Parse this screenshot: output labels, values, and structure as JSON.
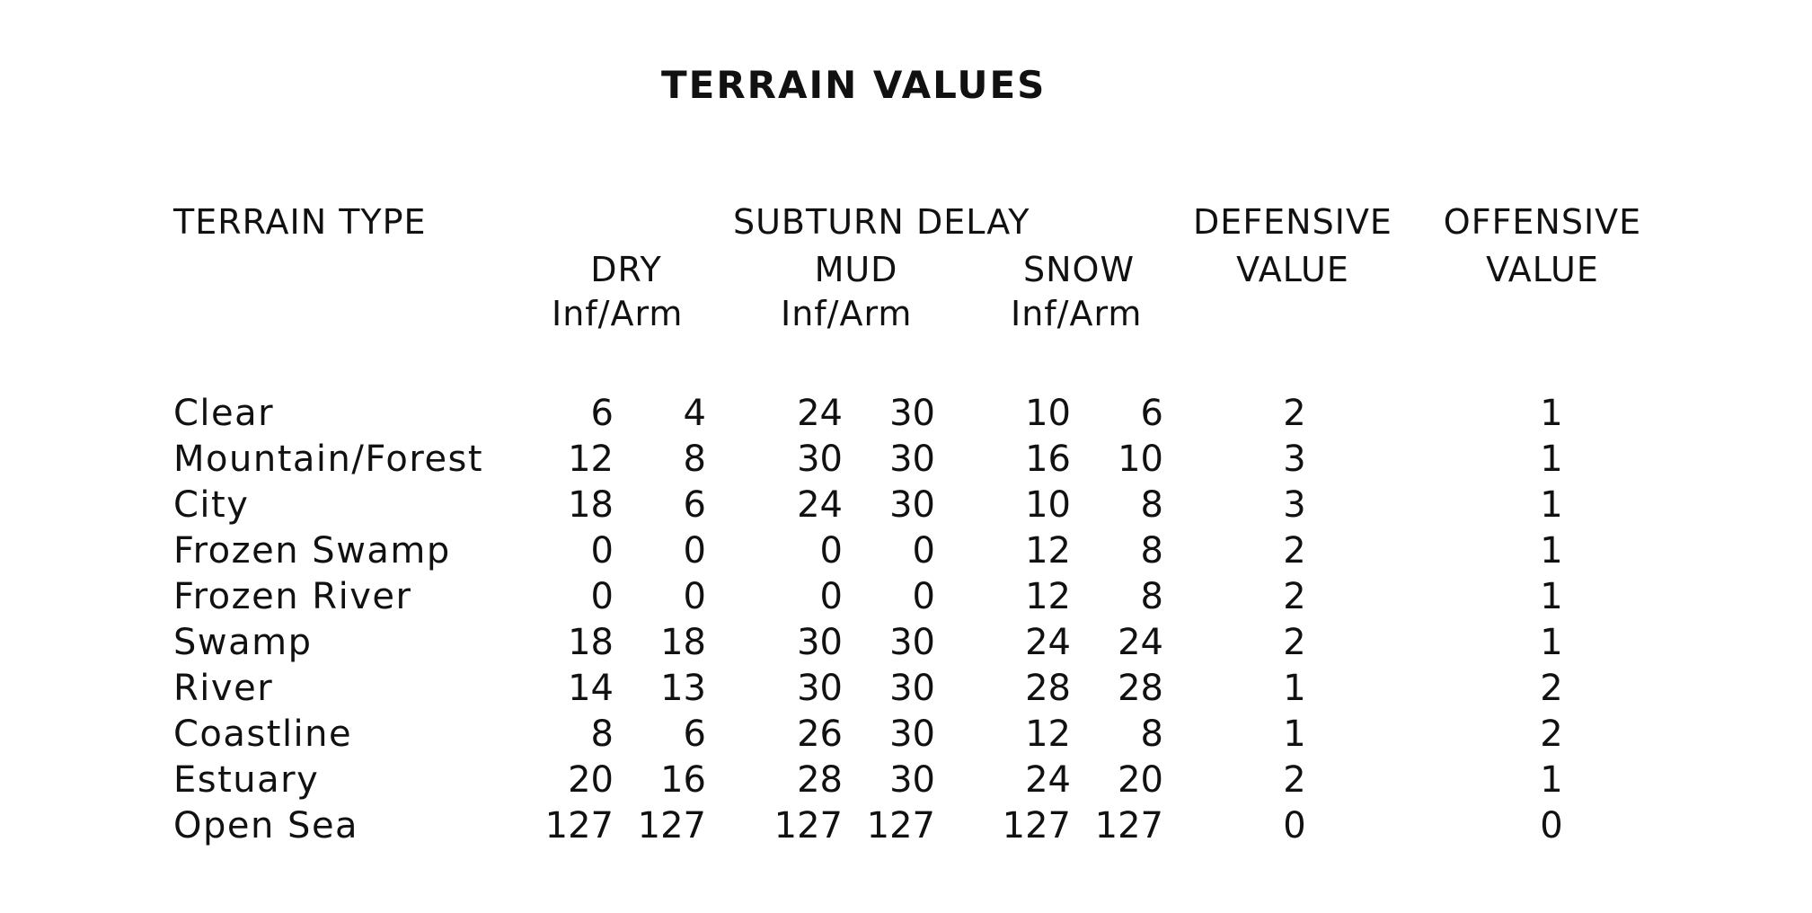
{
  "title": "TERRAIN VALUES",
  "headers": {
    "terrain_type": "TERRAIN TYPE",
    "subturn_delay": "SUBTURN DELAY",
    "dry": "DRY",
    "mud": "MUD",
    "snow": "SNOW",
    "inf_arm": "Inf/Arm",
    "defensive_line1": "DEFENSIVE",
    "defensive_line2": "VALUE",
    "offensive_line1": "OFFENSIVE",
    "offensive_line2": "VALUE"
  },
  "rows": [
    {
      "terrain": "Clear",
      "dry_inf": "6",
      "dry_arm": "4",
      "mud_inf": "24",
      "mud_arm": "30",
      "snow_inf": "10",
      "snow_arm": "6",
      "defensive": "2",
      "offensive": "1"
    },
    {
      "terrain": "Mountain/Forest",
      "dry_inf": "12",
      "dry_arm": "8",
      "mud_inf": "30",
      "mud_arm": "30",
      "snow_inf": "16",
      "snow_arm": "10",
      "defensive": "3",
      "offensive": "1"
    },
    {
      "terrain": "City",
      "dry_inf": "18",
      "dry_arm": "6",
      "mud_inf": "24",
      "mud_arm": "30",
      "snow_inf": "10",
      "snow_arm": "8",
      "defensive": "3",
      "offensive": "1"
    },
    {
      "terrain": "Frozen Swamp",
      "dry_inf": "0",
      "dry_arm": "0",
      "mud_inf": "0",
      "mud_arm": "0",
      "snow_inf": "12",
      "snow_arm": "8",
      "defensive": "2",
      "offensive": "1"
    },
    {
      "terrain": "Frozen River",
      "dry_inf": "0",
      "dry_arm": "0",
      "mud_inf": "0",
      "mud_arm": "0",
      "snow_inf": "12",
      "snow_arm": "8",
      "defensive": "2",
      "offensive": "1"
    },
    {
      "terrain": "Swamp",
      "dry_inf": "18",
      "dry_arm": "18",
      "mud_inf": "30",
      "mud_arm": "30",
      "snow_inf": "24",
      "snow_arm": "24",
      "defensive": "2",
      "offensive": "1"
    },
    {
      "terrain": "River",
      "dry_inf": "14",
      "dry_arm": "13",
      "mud_inf": "30",
      "mud_arm": "30",
      "snow_inf": "28",
      "snow_arm": "28",
      "defensive": "1",
      "offensive": "2"
    },
    {
      "terrain": "Coastline",
      "dry_inf": "8",
      "dry_arm": "6",
      "mud_inf": "26",
      "mud_arm": "30",
      "snow_inf": "12",
      "snow_arm": "8",
      "defensive": "1",
      "offensive": "2"
    },
    {
      "terrain": "Estuary",
      "dry_inf": "20",
      "dry_arm": "16",
      "mud_inf": "28",
      "mud_arm": "30",
      "snow_inf": "24",
      "snow_arm": "20",
      "defensive": "2",
      "offensive": "1"
    },
    {
      "terrain": "Open Sea",
      "dry_inf": "127",
      "dry_arm": "127",
      "mud_inf": "127",
      "mud_arm": "127",
      "snow_inf": "127",
      "snow_arm": "127",
      "defensive": "0",
      "offensive": "0"
    }
  ]
}
